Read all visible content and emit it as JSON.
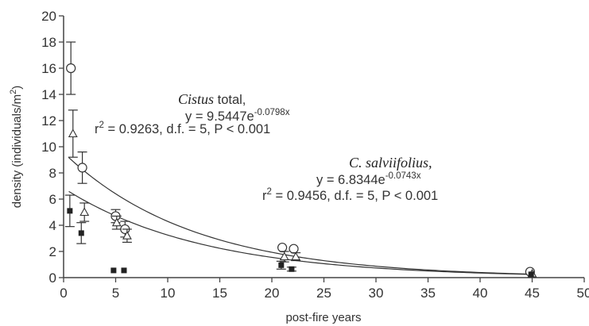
{
  "chart_data": {
    "type": "scatter",
    "xlabel": "post-fire years",
    "ylabel": {
      "pre": "density (individuals/m",
      "sup": "2",
      "post": ")"
    },
    "xlim": [
      0,
      50
    ],
    "ylim": [
      0,
      20
    ],
    "x_ticks": [
      0,
      5,
      10,
      15,
      20,
      25,
      30,
      35,
      40,
      45,
      50
    ],
    "y_ticks": [
      0,
      2,
      4,
      6,
      8,
      10,
      12,
      14,
      16,
      18,
      20
    ],
    "grid": false,
    "series": [
      {
        "marker": "circle",
        "points": [
          {
            "x": 0.7,
            "y": 16.0,
            "err": 2.0
          },
          {
            "x": 1.8,
            "y": 8.4,
            "err": 1.2
          },
          {
            "x": 5.0,
            "y": 4.7,
            "err": 0.5
          },
          {
            "x": 5.9,
            "y": 3.7,
            "err": 0.6
          },
          {
            "x": 21.0,
            "y": 2.3,
            "err": 0
          },
          {
            "x": 22.1,
            "y": 2.2,
            "err": 0
          },
          {
            "x": 44.8,
            "y": 0.45,
            "err": 0
          }
        ]
      },
      {
        "marker": "triangle",
        "points": [
          {
            "x": 0.9,
            "y": 11.0,
            "err": 1.8
          },
          {
            "x": 2.0,
            "y": 5.0,
            "err": 0.7
          },
          {
            "x": 5.1,
            "y": 4.2,
            "err": 0.5
          },
          {
            "x": 6.1,
            "y": 3.2,
            "err": 0.5
          },
          {
            "x": 21.2,
            "y": 1.6,
            "err": 0.4
          },
          {
            "x": 22.3,
            "y": 1.6,
            "err": 0.3
          },
          {
            "x": 45.0,
            "y": 0.3,
            "err": 0
          }
        ]
      },
      {
        "marker": "square",
        "points": [
          {
            "x": 0.6,
            "y": 5.1,
            "err": 1.2
          },
          {
            "x": 1.7,
            "y": 3.4,
            "err": 0.8
          },
          {
            "x": 4.8,
            "y": 0.55,
            "err": 0
          },
          {
            "x": 5.8,
            "y": 0.55,
            "err": 0
          },
          {
            "x": 20.9,
            "y": 0.95,
            "err": 0.3
          },
          {
            "x": 21.9,
            "y": 0.65,
            "err": 0.15
          },
          {
            "x": 44.9,
            "y": 0.25,
            "err": 0
          }
        ]
      }
    ],
    "fits": [
      {
        "a": 9.5447,
        "b": -0.0798,
        "x_start": 0.5,
        "x_end": 45
      },
      {
        "a": 6.8344,
        "b": -0.0743,
        "x_start": 0.5,
        "x_end": 45
      }
    ],
    "annotations": [
      {
        "name_italic": "Cistus",
        "name_rest": " total,",
        "equation": {
          "lhs": "y = 9.5447e",
          "exp": "-0.0798x"
        },
        "stats": {
          "r": "r",
          "r_exp": "2",
          "rest": " = 0.9263, d.f. = 5, P < 0.001"
        }
      },
      {
        "name_italic": "C. salviifolius,",
        "name_rest": "",
        "equation": {
          "lhs": "y = 6.8344e",
          "exp": "-0.0743x"
        },
        "stats": {
          "r": "r",
          "r_exp": "2",
          "rest": " = 0.9456, d.f. = 5, P < 0.001"
        }
      }
    ]
  }
}
